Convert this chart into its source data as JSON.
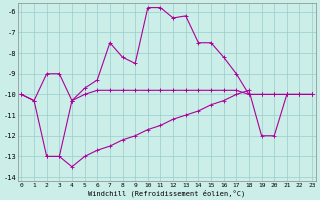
{
  "bg_color": "#cceee8",
  "grid_color": "#99cccc",
  "line_color": "#aa0099",
  "xlim_min": -0.3,
  "xlim_max": 23.3,
  "ylim_min": -14.2,
  "ylim_max": -5.6,
  "yticks": [
    -14,
    -13,
    -12,
    -11,
    -10,
    -9,
    -8,
    -7,
    -6
  ],
  "xticks": [
    0,
    1,
    2,
    3,
    4,
    5,
    6,
    7,
    8,
    9,
    10,
    11,
    12,
    13,
    14,
    15,
    16,
    17,
    18,
    19,
    20,
    21,
    22,
    23
  ],
  "xlabel": "Windchill (Refroidissement éolien,°C)",
  "curve1_x": [
    0,
    1,
    2,
    3,
    4,
    5,
    6,
    7,
    8,
    9,
    10,
    11,
    12,
    13,
    14,
    15,
    16,
    17,
    18,
    19,
    20,
    21,
    22,
    23
  ],
  "curve1_y": [
    -10.0,
    -10.3,
    -9.0,
    -9.0,
    -10.3,
    -9.7,
    -9.3,
    -7.5,
    -8.2,
    -8.5,
    -5.8,
    -5.8,
    -6.3,
    -6.2,
    -7.5,
    -7.5,
    -8.2,
    -9.0,
    -10.0,
    -10.0,
    -10.0,
    -10.0,
    -10.0,
    -10.0
  ],
  "curve2_x": [
    0,
    1,
    2,
    3,
    4,
    5,
    6,
    7,
    8,
    9,
    10,
    11,
    12,
    13,
    14,
    15,
    16,
    17,
    18,
    19,
    20,
    21,
    22,
    23
  ],
  "curve2_y": [
    -10.0,
    -10.3,
    -13.0,
    -13.0,
    -10.3,
    -10.0,
    -9.8,
    -9.8,
    -9.8,
    -9.8,
    -9.8,
    -9.8,
    -9.8,
    -9.8,
    -9.8,
    -9.8,
    -9.8,
    -9.8,
    -10.0,
    -10.0,
    -10.0,
    -10.0,
    -10.0,
    -10.0
  ],
  "curve3_x": [
    2,
    3,
    4,
    5,
    6,
    7,
    8,
    9,
    10,
    11,
    12,
    13,
    14,
    15,
    16,
    17,
    18,
    19,
    20,
    21,
    22,
    23
  ],
  "curve3_y": [
    -13.0,
    -13.0,
    -13.5,
    -13.0,
    -12.7,
    -12.5,
    -12.2,
    -12.0,
    -11.7,
    -11.5,
    -11.2,
    -11.0,
    -10.8,
    -10.5,
    -10.3,
    -10.0,
    -9.8,
    -12.0,
    -12.0,
    -10.0,
    -10.0,
    -10.0
  ]
}
